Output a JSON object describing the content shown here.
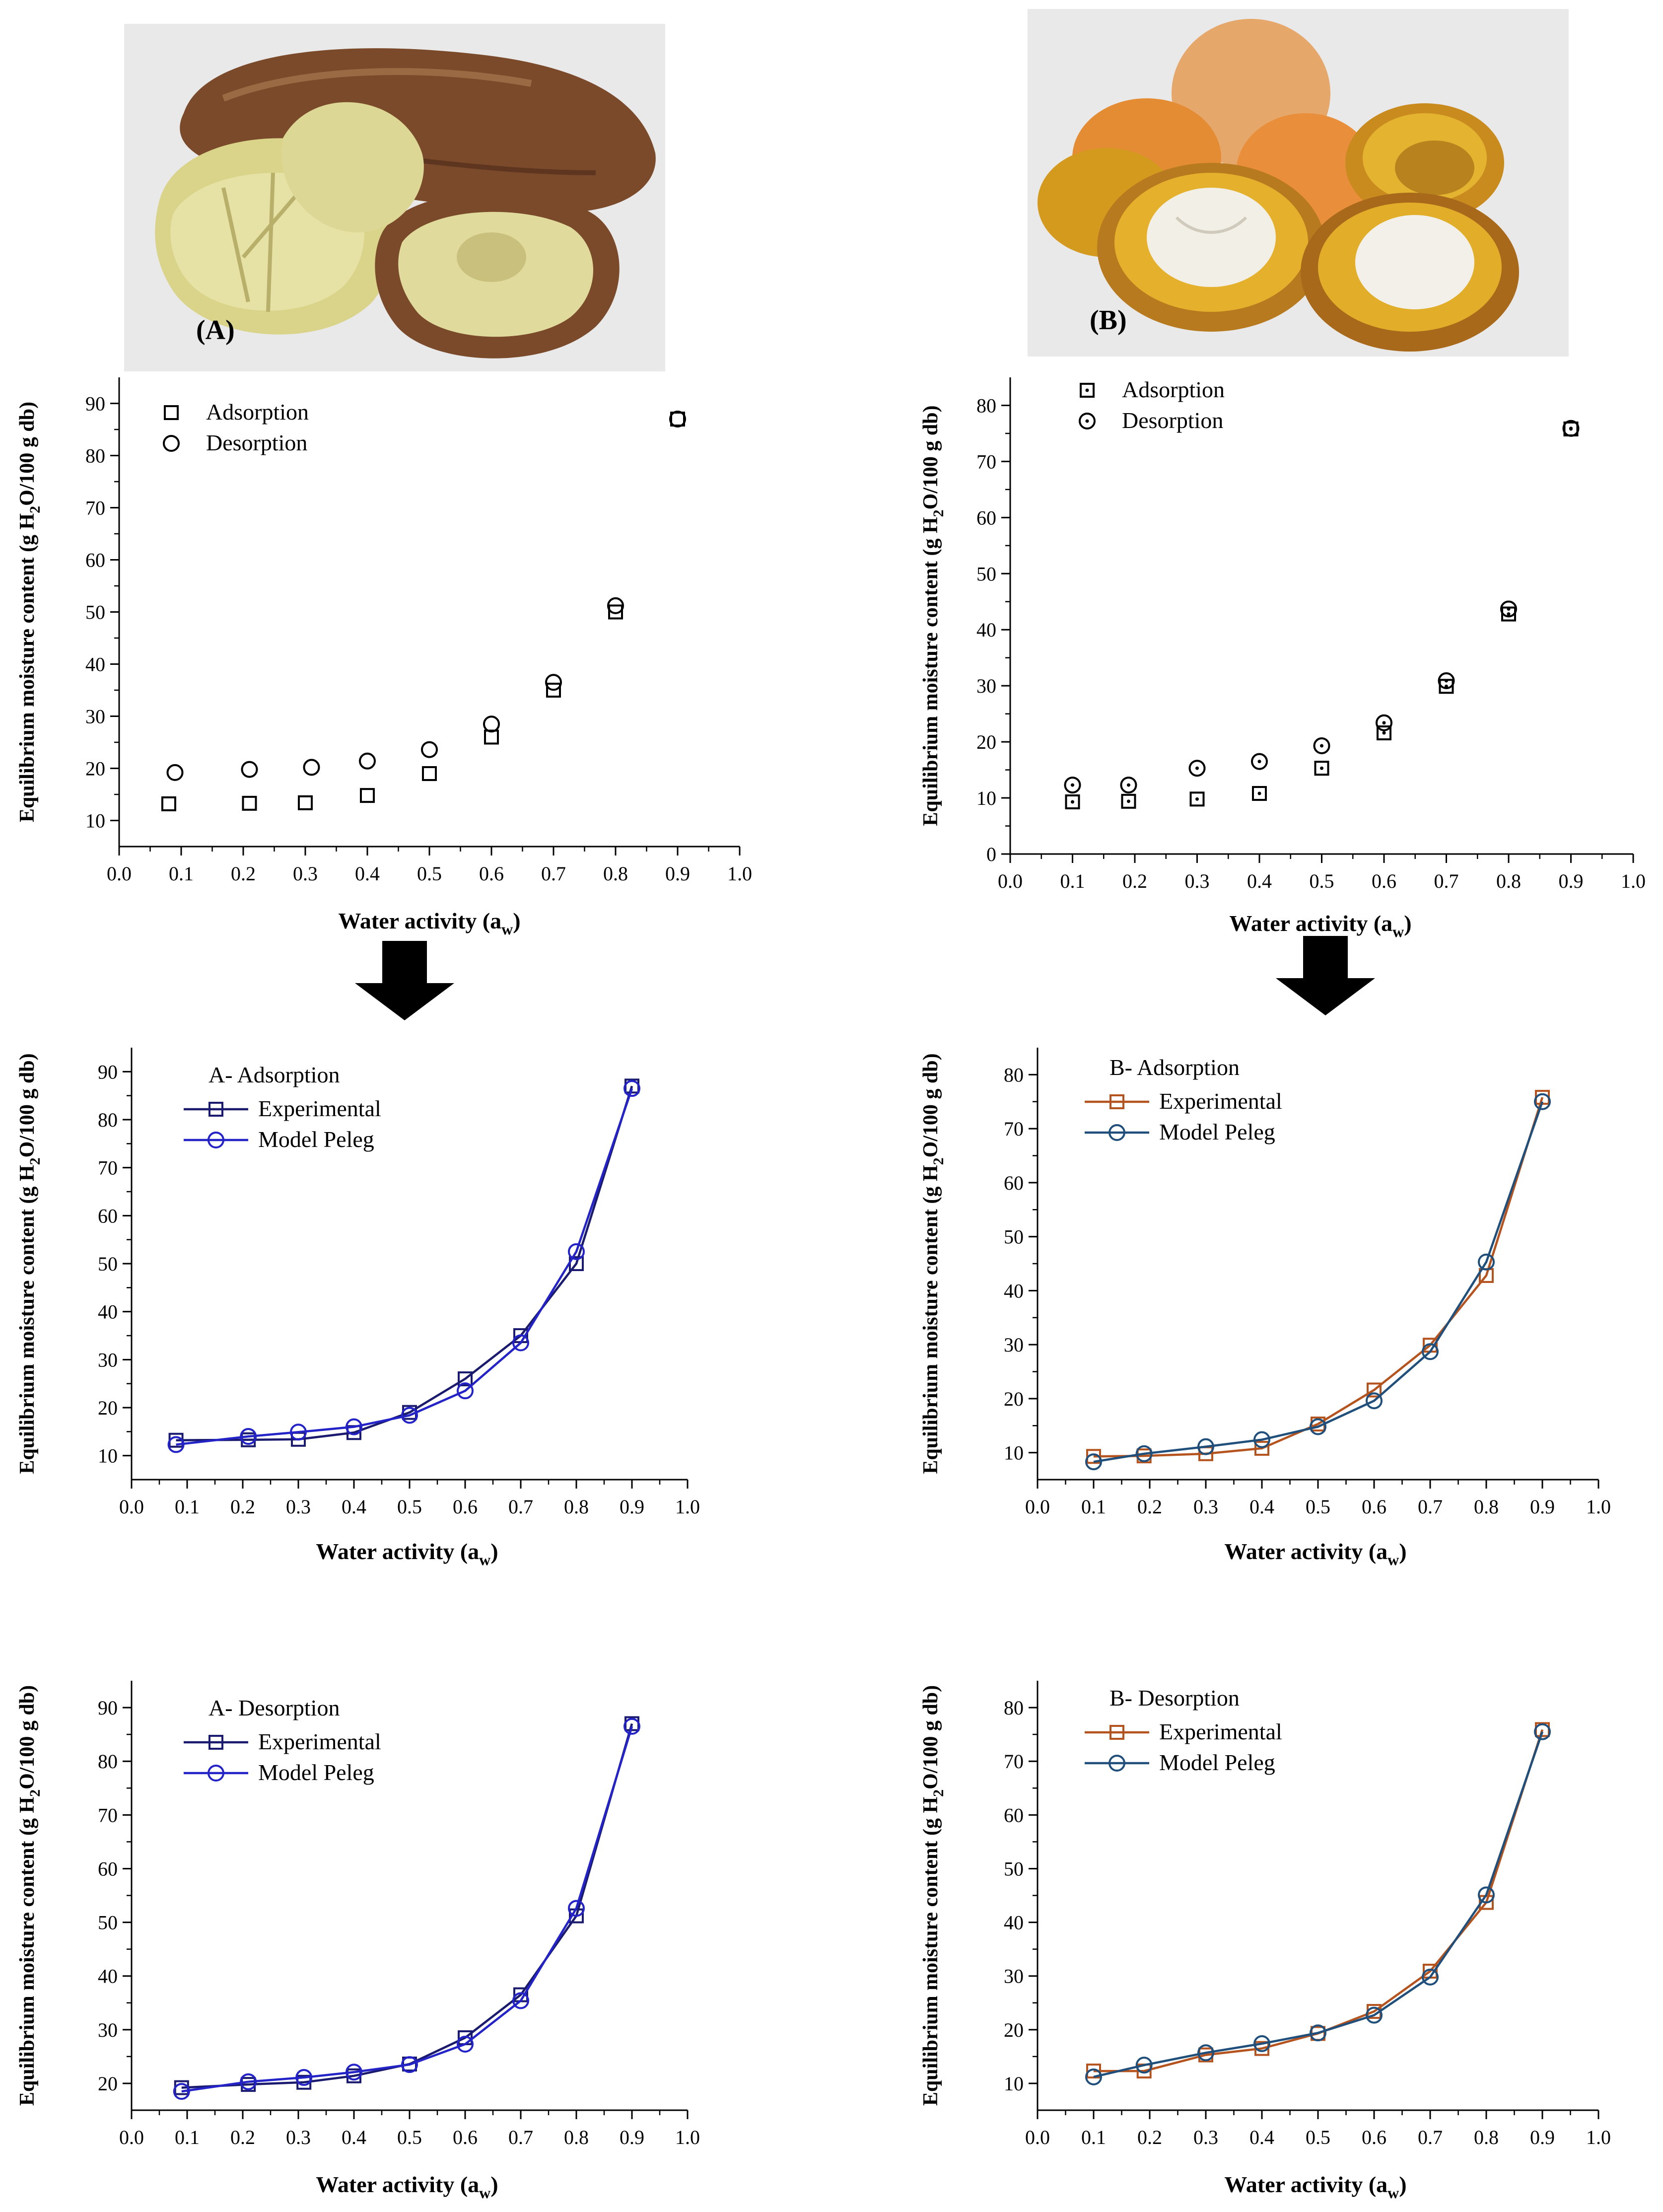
{
  "figure": {
    "photo_a_label": "(A)",
    "photo_b_label": "(B)",
    "arrow_icon": "down-arrow-icon"
  },
  "colors": {
    "axis": "#000000",
    "a_experimental": "#1a1a6e",
    "a_model": "#2323c8",
    "b_experimental": "#b5531e",
    "b_model": "#1f4f7a",
    "photo_bg": "#e9e9e9"
  },
  "chart_data": [
    {
      "id": "A-isotherms",
      "type": "scatter",
      "title": "",
      "xlabel": "Water activity (a",
      "xlabel_sub": "w",
      "xlabel_end": ")",
      "ylabel_pre": "Equilibrium moisture content (g H",
      "ylabel_sub": "2",
      "ylabel_post": "O/100 g db)",
      "xlim": [
        0,
        1.0
      ],
      "ylim": [
        5,
        95
      ],
      "xticks": [
        0.0,
        0.1,
        0.2,
        0.3,
        0.4,
        0.5,
        0.6,
        0.7,
        0.8,
        0.9,
        1.0
      ],
      "xtick_labels": [
        "0.0",
        "0.1",
        "0.2",
        "0.3",
        "0.4",
        "0.5",
        "0.6",
        "0.7",
        "0.8",
        "0.9",
        "1.0"
      ],
      "yticks": [
        10,
        20,
        30,
        40,
        50,
        60,
        70,
        80,
        90
      ],
      "ytick_labels": [
        "10",
        "20",
        "30",
        "40",
        "50",
        "60",
        "70",
        "80",
        "90"
      ],
      "legend_title": "",
      "series": [
        {
          "name": "Adsorption",
          "marker": "square",
          "line": false,
          "color": "#000000",
          "x": [
            0.08,
            0.21,
            0.3,
            0.4,
            0.5,
            0.6,
            0.7,
            0.8,
            0.9
          ],
          "y": [
            13.2,
            13.3,
            13.4,
            14.8,
            19.0,
            26.0,
            35.0,
            50.0,
            87.0
          ]
        },
        {
          "name": "Desorption",
          "marker": "circle",
          "line": false,
          "color": "#000000",
          "x": [
            0.09,
            0.21,
            0.31,
            0.4,
            0.5,
            0.6,
            0.7,
            0.8,
            0.9
          ],
          "y": [
            19.2,
            19.8,
            20.2,
            21.4,
            23.6,
            28.5,
            36.5,
            51.2,
            87.0
          ]
        }
      ]
    },
    {
      "id": "B-isotherms",
      "type": "scatter",
      "title": "",
      "xlabel": "Water activity (a",
      "xlabel_sub": "w",
      "xlabel_end": ")",
      "ylabel_pre": "Equilibrium moisture content (g H",
      "ylabel_sub": "2",
      "ylabel_post": "O/100 g db)",
      "xlim": [
        0,
        1.0
      ],
      "ylim": [
        0,
        85
      ],
      "xticks": [
        0.0,
        0.1,
        0.2,
        0.3,
        0.4,
        0.5,
        0.6,
        0.7,
        0.8,
        0.9,
        1.0
      ],
      "xtick_labels": [
        "0.0",
        "0.1",
        "0.2",
        "0.3",
        "0.4",
        "0.5",
        "0.6",
        "0.7",
        "0.8",
        "0.9",
        "1.0"
      ],
      "yticks": [
        0,
        10,
        20,
        30,
        40,
        50,
        60,
        70,
        80
      ],
      "ytick_labels": [
        "0",
        "10",
        "20",
        "30",
        "40",
        "50",
        "60",
        "70",
        "80"
      ],
      "legend_title": "",
      "series": [
        {
          "name": "Adsorption",
          "marker": "square-dot",
          "line": false,
          "color": "#000000",
          "x": [
            0.1,
            0.19,
            0.3,
            0.4,
            0.5,
            0.6,
            0.7,
            0.8,
            0.9
          ],
          "y": [
            9.3,
            9.4,
            9.8,
            10.8,
            15.3,
            21.6,
            29.9,
            42.8,
            75.8
          ]
        },
        {
          "name": "Desorption",
          "marker": "circle-dot",
          "line": false,
          "color": "#000000",
          "x": [
            0.1,
            0.19,
            0.3,
            0.4,
            0.5,
            0.6,
            0.7,
            0.8,
            0.9
          ],
          "y": [
            12.3,
            12.3,
            15.3,
            16.5,
            19.3,
            23.4,
            30.9,
            43.7,
            75.9
          ]
        }
      ]
    },
    {
      "id": "A-adsorption",
      "type": "line",
      "title": "",
      "xlabel": "Water activity (a",
      "xlabel_sub": "w",
      "xlabel_end": ")",
      "ylabel_pre": "Equilibrium moisture content (g H",
      "ylabel_sub": "2",
      "ylabel_post": "O/100 g db)",
      "xlim": [
        0,
        1.0
      ],
      "ylim": [
        5,
        95
      ],
      "xticks": [
        0.0,
        0.1,
        0.2,
        0.3,
        0.4,
        0.5,
        0.6,
        0.7,
        0.8,
        0.9,
        1.0
      ],
      "xtick_labels": [
        "0.0",
        "0.1",
        "0.2",
        "0.3",
        "0.4",
        "0.5",
        "0.6",
        "0.7",
        "0.8",
        "0.9",
        "1.0"
      ],
      "yticks": [
        10,
        20,
        30,
        40,
        50,
        60,
        70,
        80,
        90
      ],
      "ytick_labels": [
        "10",
        "20",
        "30",
        "40",
        "50",
        "60",
        "70",
        "80",
        "90"
      ],
      "legend_title": "A- Adsorption",
      "series": [
        {
          "name": "Experimental",
          "marker": "square",
          "line": true,
          "color": "#1a1a6e",
          "x": [
            0.08,
            0.21,
            0.3,
            0.4,
            0.5,
            0.6,
            0.7,
            0.8,
            0.9
          ],
          "y": [
            13.2,
            13.3,
            13.4,
            14.8,
            19.0,
            26.0,
            35.0,
            50.0,
            87.0
          ]
        },
        {
          "name": "Model Peleg",
          "marker": "circle",
          "line": true,
          "color": "#2323c8",
          "x": [
            0.08,
            0.21,
            0.3,
            0.4,
            0.5,
            0.6,
            0.7,
            0.8,
            0.9
          ],
          "y": [
            12.3,
            14.0,
            14.9,
            16.0,
            18.4,
            23.5,
            33.5,
            52.5,
            86.5
          ]
        }
      ]
    },
    {
      "id": "B-adsorption",
      "type": "line",
      "title": "",
      "xlabel": "Water activity (a",
      "xlabel_sub": "w",
      "xlabel_end": ")",
      "ylabel_pre": "Equilibrium moisture content (g H",
      "ylabel_sub": "2",
      "ylabel_post": "O/100 g db)",
      "xlim": [
        0,
        1.0
      ],
      "ylim": [
        5,
        85
      ],
      "xticks": [
        0.0,
        0.1,
        0.2,
        0.3,
        0.4,
        0.5,
        0.6,
        0.7,
        0.8,
        0.9,
        1.0
      ],
      "xtick_labels": [
        "0.0",
        "0.1",
        "0.2",
        "0.3",
        "0.4",
        "0.5",
        "0.6",
        "0.7",
        "0.8",
        "0.9",
        "1.0"
      ],
      "yticks": [
        10,
        20,
        30,
        40,
        50,
        60,
        70,
        80
      ],
      "ytick_labels": [
        "10",
        "20",
        "30",
        "40",
        "50",
        "60",
        "70",
        "80"
      ],
      "legend_title": "B- Adsorption",
      "series": [
        {
          "name": "Experimental",
          "marker": "square",
          "line": true,
          "color": "#b5531e",
          "x": [
            0.1,
            0.19,
            0.3,
            0.4,
            0.5,
            0.6,
            0.7,
            0.8,
            0.9
          ],
          "y": [
            9.3,
            9.4,
            9.8,
            10.8,
            15.3,
            21.6,
            29.9,
            42.8,
            75.8
          ]
        },
        {
          "name": "Model Peleg",
          "marker": "circle",
          "line": true,
          "color": "#1f4f7a",
          "x": [
            0.1,
            0.19,
            0.3,
            0.4,
            0.5,
            0.6,
            0.7,
            0.8,
            0.9
          ],
          "y": [
            8.3,
            9.8,
            11.1,
            12.4,
            14.8,
            19.6,
            28.7,
            45.3,
            75.0
          ]
        }
      ]
    },
    {
      "id": "A-desorption",
      "type": "line",
      "title": "",
      "xlabel": "Water activity (a",
      "xlabel_sub": "w",
      "xlabel_end": ")",
      "ylabel_pre": "Equilibrium moisture content (g H",
      "ylabel_sub": "2",
      "ylabel_post": "O/100 g db)",
      "xlim": [
        0,
        1.0
      ],
      "ylim": [
        15,
        95
      ],
      "xticks": [
        0.0,
        0.1,
        0.2,
        0.3,
        0.4,
        0.5,
        0.6,
        0.7,
        0.8,
        0.9,
        1.0
      ],
      "xtick_labels": [
        "0.0",
        "0.1",
        "0.2",
        "0.3",
        "0.4",
        "0.5",
        "0.6",
        "0.7",
        "0.8",
        "0.9",
        "1.0"
      ],
      "yticks": [
        20,
        30,
        40,
        50,
        60,
        70,
        80,
        90
      ],
      "ytick_labels": [
        "20",
        "30",
        "40",
        "50",
        "60",
        "70",
        "80",
        "90"
      ],
      "legend_title": "A- Desorption",
      "series": [
        {
          "name": "Experimental",
          "marker": "square",
          "line": true,
          "color": "#1a1a6e",
          "x": [
            0.09,
            0.21,
            0.31,
            0.4,
            0.5,
            0.6,
            0.7,
            0.8,
            0.9
          ],
          "y": [
            19.2,
            19.8,
            20.2,
            21.4,
            23.6,
            28.5,
            36.5,
            51.2,
            87.0
          ]
        },
        {
          "name": "Model Peleg",
          "marker": "circle",
          "line": true,
          "color": "#2323c8",
          "x": [
            0.09,
            0.21,
            0.31,
            0.4,
            0.5,
            0.6,
            0.7,
            0.8,
            0.9
          ],
          "y": [
            18.5,
            20.3,
            21.1,
            22.1,
            23.5,
            27.3,
            35.4,
            52.6,
            86.5
          ]
        }
      ]
    },
    {
      "id": "B-desorption",
      "type": "line",
      "title": "",
      "xlabel": "Water activity (a",
      "xlabel_sub": "w",
      "xlabel_end": ")",
      "ylabel_pre": "Equilibrium moisture content (g H",
      "ylabel_sub": "2",
      "ylabel_post": "O/100 g db)",
      "xlim": [
        0,
        1.0
      ],
      "ylim": [
        5,
        85
      ],
      "xticks": [
        0.0,
        0.1,
        0.2,
        0.3,
        0.4,
        0.5,
        0.6,
        0.7,
        0.8,
        0.9,
        1.0
      ],
      "xtick_labels": [
        "0.0",
        "0.1",
        "0.2",
        "0.3",
        "0.4",
        "0.5",
        "0.6",
        "0.7",
        "0.8",
        "0.9",
        "1.0"
      ],
      "yticks": [
        10,
        20,
        30,
        40,
        50,
        60,
        70,
        80
      ],
      "ytick_labels": [
        "10",
        "20",
        "30",
        "40",
        "50",
        "60",
        "70",
        "80"
      ],
      "legend_title": "B- Desorption",
      "series": [
        {
          "name": "Experimental",
          "marker": "square",
          "line": true,
          "color": "#b5531e",
          "x": [
            0.1,
            0.19,
            0.3,
            0.4,
            0.5,
            0.6,
            0.7,
            0.8,
            0.9
          ],
          "y": [
            12.3,
            12.3,
            15.3,
            16.5,
            19.3,
            23.4,
            30.9,
            43.7,
            75.9
          ]
        },
        {
          "name": "Model Peleg",
          "marker": "circle",
          "line": true,
          "color": "#1f4f7a",
          "x": [
            0.1,
            0.19,
            0.3,
            0.4,
            0.5,
            0.6,
            0.7,
            0.8,
            0.9
          ],
          "y": [
            11.2,
            13.4,
            15.7,
            17.4,
            19.4,
            22.7,
            29.8,
            45.1,
            75.5
          ]
        }
      ]
    }
  ]
}
